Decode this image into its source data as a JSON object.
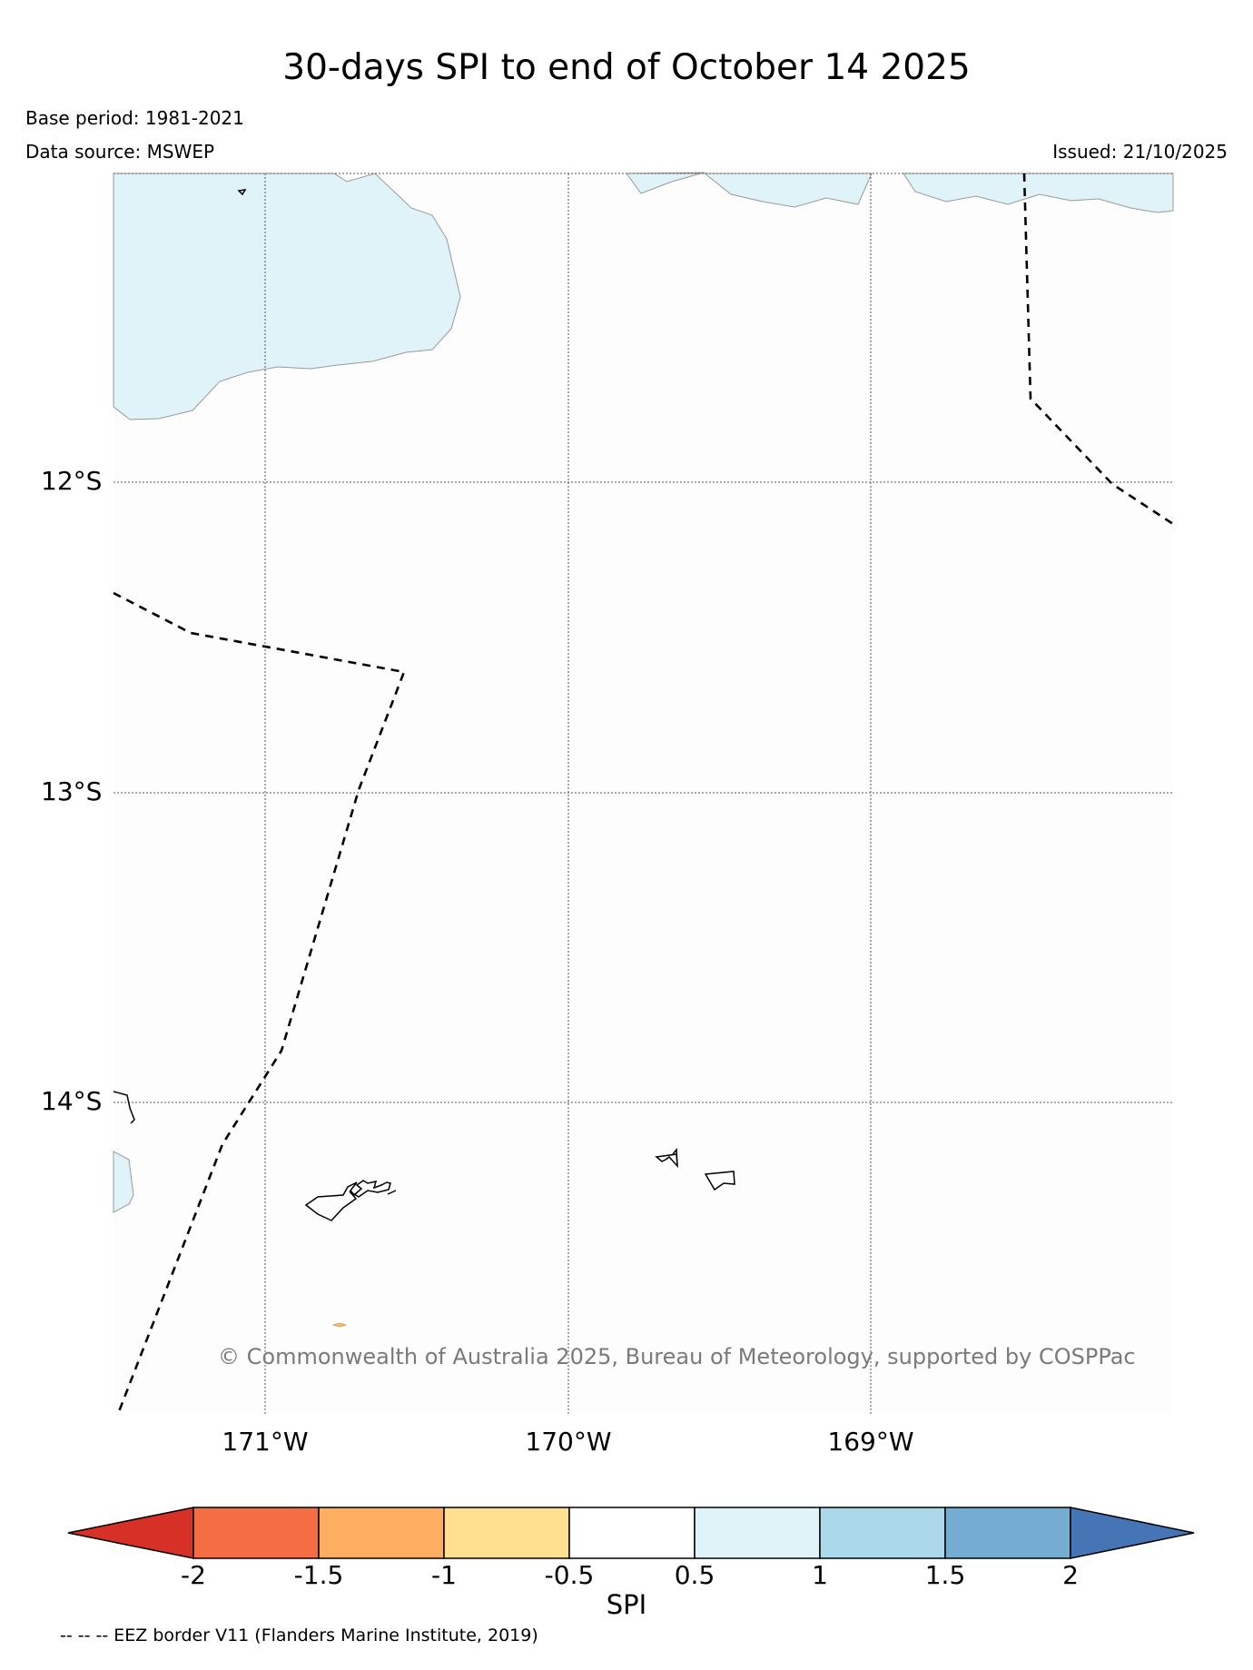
{
  "title": "30-days SPI to end of October 14 2025",
  "base_period": "Base period: 1981-2021",
  "data_source": "Data source: MSWEP",
  "issued": "Issued: 21/10/2025",
  "copyright": "© Commonwealth of Australia 2025, Bureau of Meteorology, supported by COSPPac",
  "latitude_labels": [
    "12°S",
    "13°S",
    "14°S"
  ],
  "longitude_labels": [
    "171°W",
    "170°W",
    "169°W"
  ],
  "colorbar": {
    "label": "SPI",
    "ticks": [
      "-2",
      "-1.5",
      "-1",
      "-0.5",
      "0.5",
      "1",
      "1.5",
      "2"
    ],
    "colors": [
      "#d73027",
      "#f46d43",
      "#fdae61",
      "#fee090",
      "#ffffff",
      "#e0f3f8",
      "#abd9e9",
      "#74add1",
      "#4575b4"
    ]
  },
  "legend_note": "-- -- -- EEZ border V11 (Flanders Marine Institute, 2019)",
  "map_colors": {
    "spi_light_blue": "#e0f3f8",
    "background": "#fdfdfd"
  }
}
